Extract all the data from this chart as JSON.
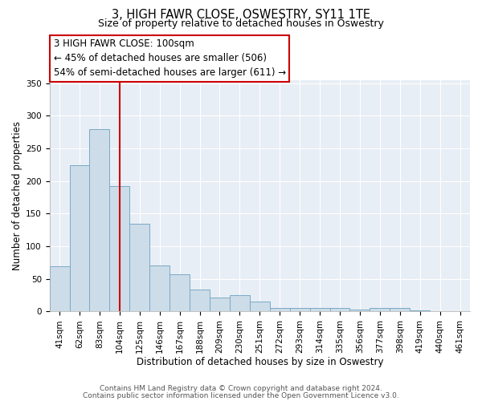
{
  "title": "3, HIGH FAWR CLOSE, OSWESTRY, SY11 1TE",
  "subtitle": "Size of property relative to detached houses in Oswestry",
  "xlabel": "Distribution of detached houses by size in Oswestry",
  "ylabel": "Number of detached properties",
  "bar_labels": [
    "41sqm",
    "62sqm",
    "83sqm",
    "104sqm",
    "125sqm",
    "146sqm",
    "167sqm",
    "188sqm",
    "209sqm",
    "230sqm",
    "251sqm",
    "272sqm",
    "293sqm",
    "314sqm",
    "335sqm",
    "356sqm",
    "377sqm",
    "398sqm",
    "419sqm",
    "440sqm",
    "461sqm"
  ],
  "bar_values": [
    70,
    224,
    280,
    193,
    134,
    71,
    57,
    34,
    22,
    25,
    15,
    5,
    5,
    6,
    5,
    3,
    5,
    6,
    2,
    0,
    1
  ],
  "bar_color": "#ccdce8",
  "bar_edge_color": "#7aaac8",
  "vline_x_idx": 3,
  "vline_color": "#cc0000",
  "annotation_line1": "3 HIGH FAWR CLOSE: 100sqm",
  "annotation_line2": "← 45% of detached houses are smaller (506)",
  "annotation_line3": "54% of semi-detached houses are larger (611) →",
  "ylim": [
    0,
    355
  ],
  "yticks": [
    0,
    50,
    100,
    150,
    200,
    250,
    300,
    350
  ],
  "footnote1": "Contains HM Land Registry data © Crown copyright and database right 2024.",
  "footnote2": "Contains public sector information licensed under the Open Government Licence v3.0.",
  "fig_bg_color": "#ffffff",
  "plot_bg_color": "#e8eef5",
  "title_fontsize": 10.5,
  "subtitle_fontsize": 9,
  "axis_label_fontsize": 8.5,
  "tick_fontsize": 7.5,
  "annotation_fontsize": 8.5,
  "footnote_fontsize": 6.5
}
